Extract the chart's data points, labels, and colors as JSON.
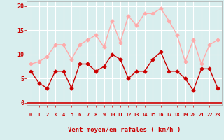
{
  "x": [
    0,
    1,
    2,
    3,
    4,
    5,
    6,
    7,
    8,
    9,
    10,
    11,
    12,
    13,
    14,
    15,
    16,
    17,
    18,
    19,
    20,
    21,
    22,
    23
  ],
  "wind_mean": [
    6.5,
    4,
    3,
    6.5,
    6.5,
    3,
    8,
    8,
    6.5,
    7.5,
    10,
    9,
    5,
    6.5,
    6.5,
    9,
    10.5,
    6.5,
    6.5,
    5,
    2.5,
    7,
    7,
    3
  ],
  "wind_gust": [
    8,
    8.5,
    9.5,
    12,
    12,
    9,
    12,
    13,
    14,
    11.5,
    17,
    12.5,
    18,
    16,
    18.5,
    18.5,
    19.5,
    17,
    14,
    8.5,
    13,
    8,
    12,
    13
  ],
  "mean_color": "#cc0000",
  "gust_color": "#ffaaaa",
  "bg_color": "#d8eeee",
  "grid_color": "#bbdddd",
  "xlabel": "Vent moyen/en rafales ( km/h )",
  "xlabel_color": "#cc0000",
  "ylabel_ticks": [
    0,
    5,
    10,
    15,
    20
  ],
  "ylim": [
    -0.5,
    21
  ],
  "xlim": [
    -0.5,
    23.5
  ],
  "tick_color": "#cc0000",
  "spine_color": "#aaaaaa",
  "marker_size": 2.5,
  "arrows": [
    "↙",
    "↙",
    "↙",
    "←",
    "←",
    "↖",
    "↑",
    "↑",
    "↖",
    "↑",
    "↗",
    "↑",
    "↑",
    "↙",
    "↙",
    "↙",
    "↓",
    "↓",
    "↘",
    "←",
    "←",
    "↗",
    "→",
    "→"
  ]
}
